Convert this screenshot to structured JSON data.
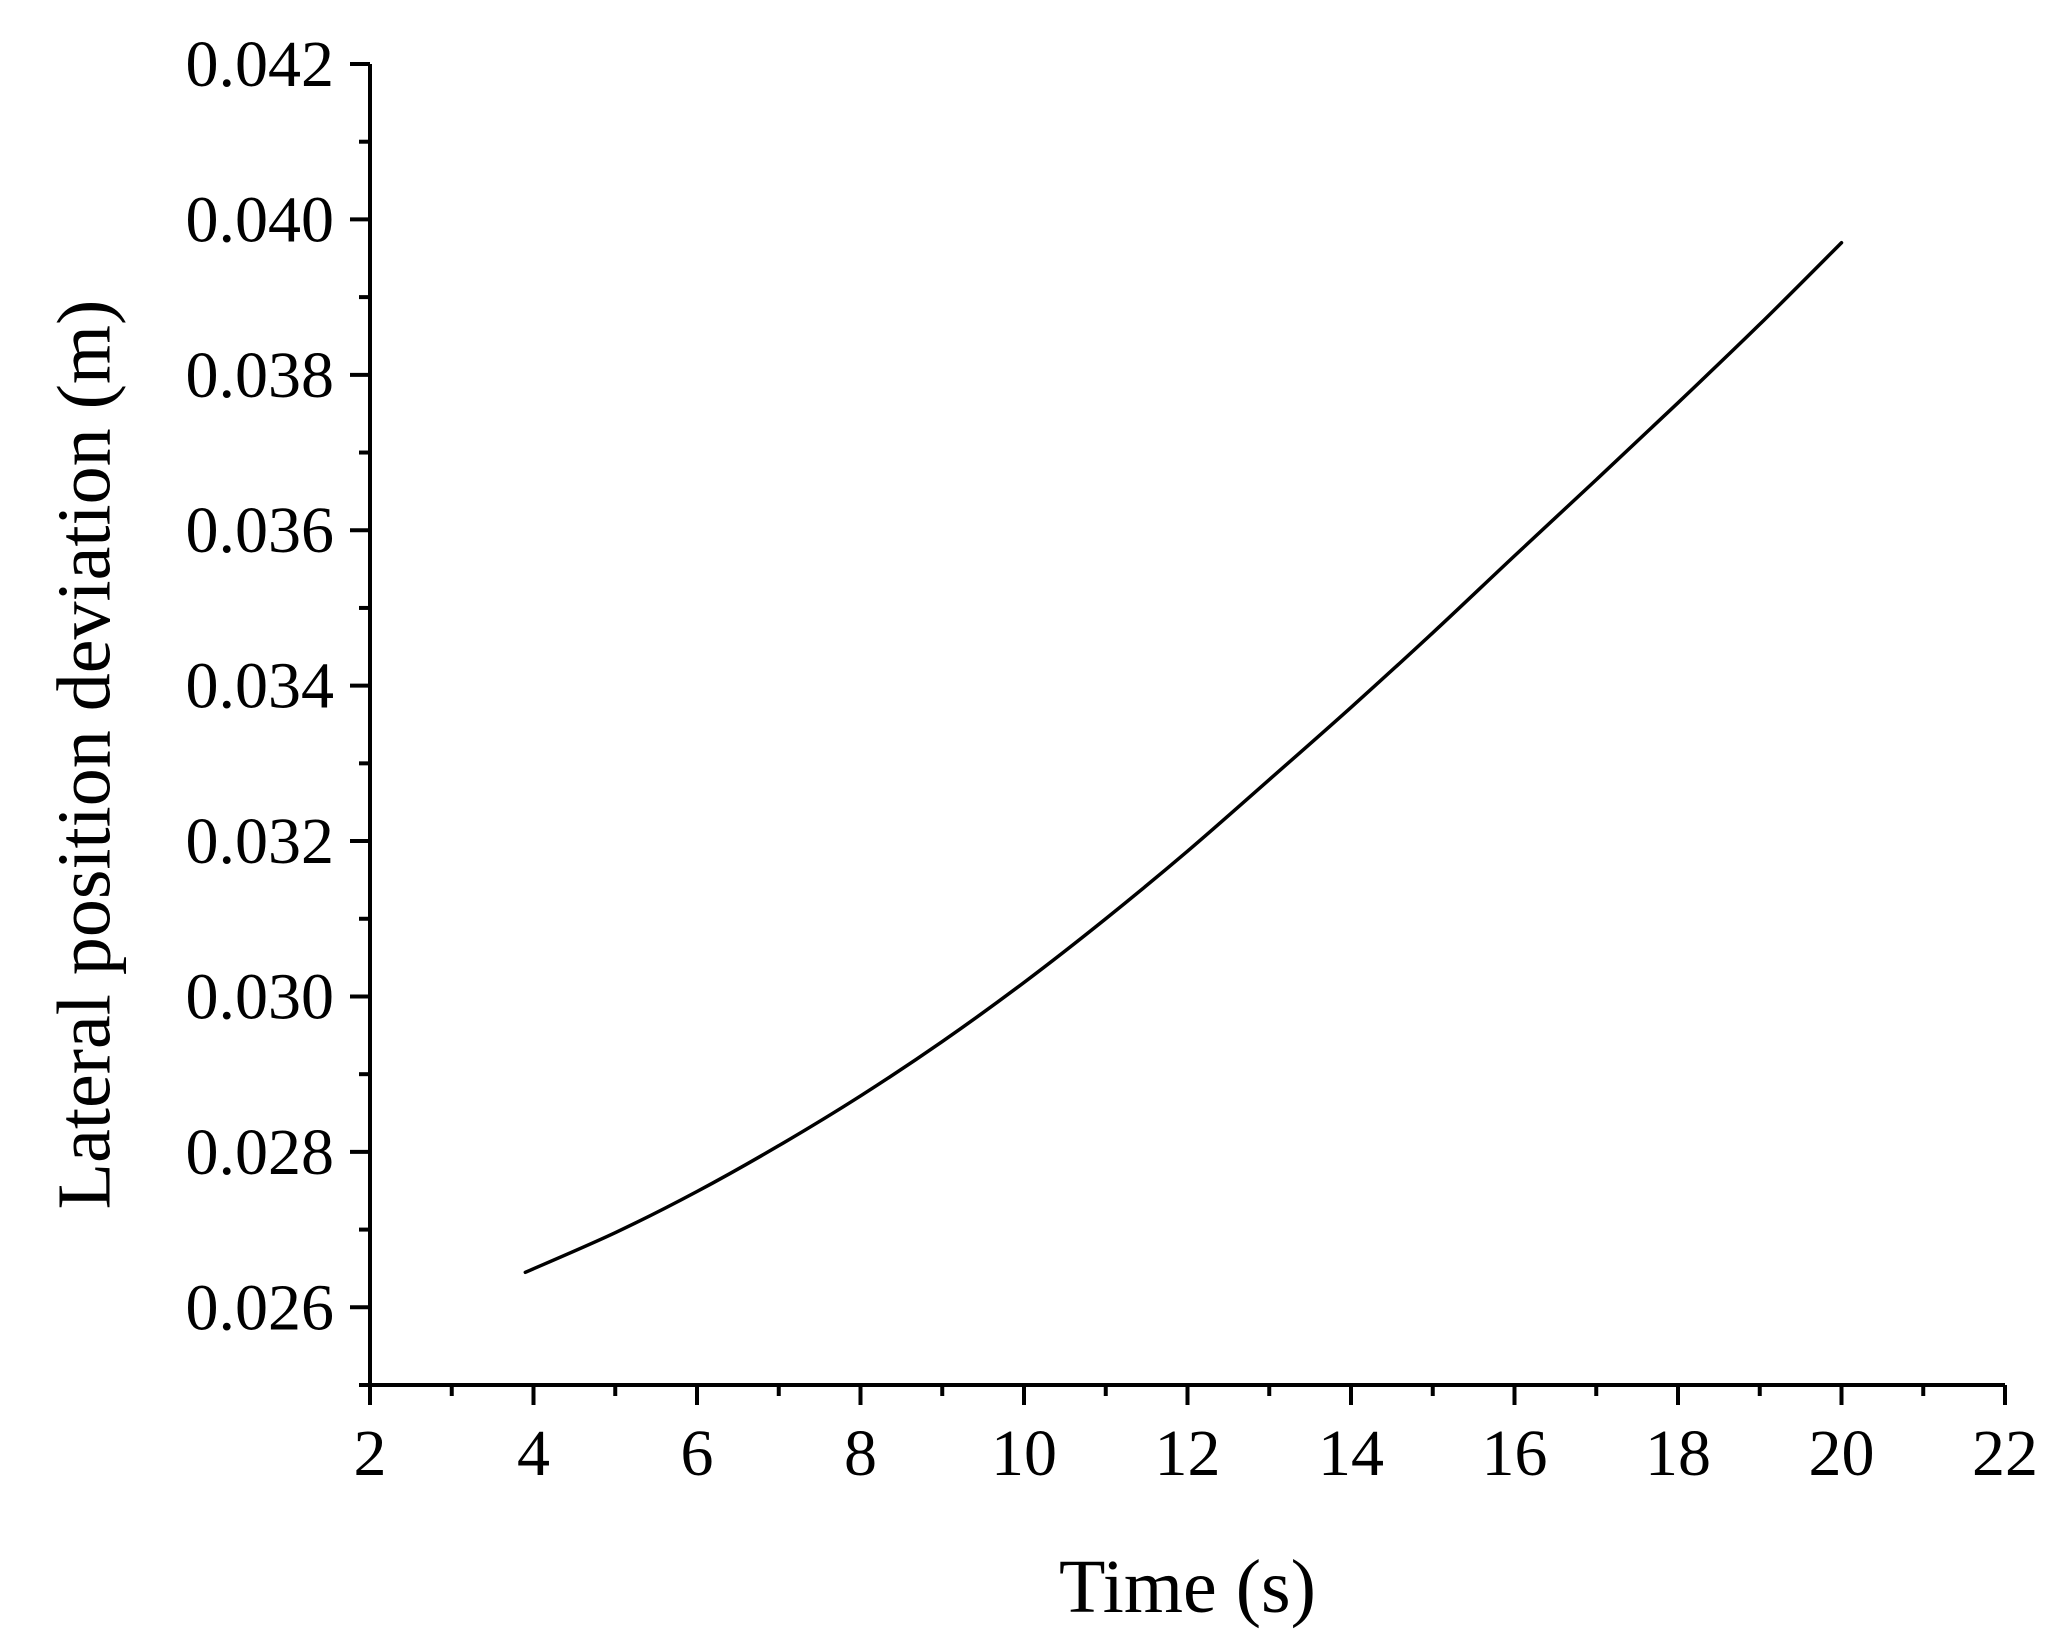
{
  "chart_data": {
    "type": "line",
    "title": "",
    "xlabel": "Time (s)",
    "ylabel": "Lateral position deviation (m)",
    "xlim": [
      2,
      22
    ],
    "ylim": [
      0.025,
      0.042
    ],
    "x_ticks": [
      "2",
      "4",
      "6",
      "8",
      "10",
      "12",
      "14",
      "16",
      "18",
      "20",
      "22"
    ],
    "y_ticks": [
      "0.026",
      "0.028",
      "0.030",
      "0.032",
      "0.034",
      "0.036",
      "0.038",
      "0.040",
      "0.042"
    ],
    "grid": false,
    "legend": "none",
    "colors": {
      "line": "#000000",
      "axis": "#000000",
      "background": "#ffffff"
    },
    "series": [
      {
        "x": [
          3.9,
          5,
          6,
          7,
          8,
          9,
          10,
          11,
          12,
          13,
          14,
          15,
          16,
          17,
          18,
          19,
          20
        ],
        "y": [
          0.02645,
          0.02696,
          0.02749,
          0.02808,
          0.02872,
          0.02942,
          0.03018,
          0.031,
          0.03187,
          0.03279,
          0.03372,
          0.03468,
          0.03567,
          0.03665,
          0.03764,
          0.03865,
          0.0397
        ]
      }
    ]
  }
}
